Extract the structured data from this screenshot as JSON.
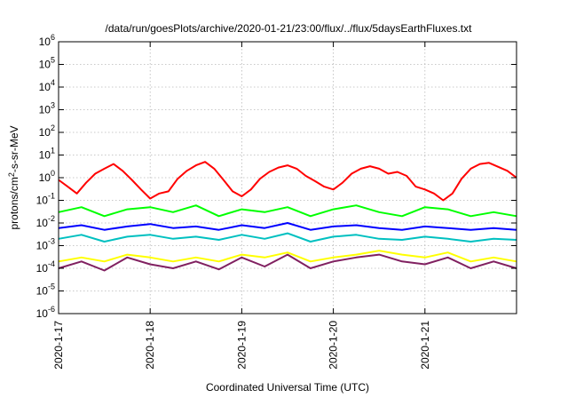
{
  "chart_data": {
    "type": "line",
    "title": "/data/run/goesPlots/archive/2020-01-21/23:00/flux/../flux/5daysEarthFluxes.txt",
    "xlabel": "Coordinated Universal Time (UTC)",
    "ylabel": "protons/cm2-s-sr-MeV",
    "ylabel_parts": {
      "before": "protons/cm",
      "sup": "2",
      "after": "-s-sr-MeV"
    },
    "x_ticks": [
      "2020-1-17",
      "2020-1-18",
      "2020-1-19",
      "2020-1-20",
      "2020-1-21"
    ],
    "xlim_days": [
      0,
      5
    ],
    "y_scale": "log",
    "y_tick_exponents": [
      -6,
      -5,
      -4,
      -3,
      -2,
      -1,
      0,
      1,
      2,
      3,
      4,
      5,
      6
    ],
    "ylim": [
      1e-06,
      1000000.0
    ],
    "grid": true,
    "series": [
      {
        "color": "#ff0000",
        "x": [
          0,
          0.1,
          0.2,
          0.3,
          0.4,
          0.5,
          0.6,
          0.7,
          0.8,
          0.9,
          1.0,
          1.1,
          1.2,
          1.3,
          1.4,
          1.5,
          1.6,
          1.7,
          1.8,
          1.9,
          2.0,
          2.1,
          2.2,
          2.3,
          2.4,
          2.5,
          2.6,
          2.7,
          2.8,
          2.9,
          3.0,
          3.1,
          3.2,
          3.3,
          3.4,
          3.5,
          3.6,
          3.7,
          3.8,
          3.9,
          4.0,
          4.1,
          4.2,
          4.3,
          4.4,
          4.5,
          4.6,
          4.7,
          4.8,
          4.9,
          5.0
        ],
        "y": [
          0.8,
          0.4,
          0.2,
          0.6,
          1.5,
          2.5,
          4.0,
          2.0,
          0.8,
          0.3,
          0.12,
          0.2,
          0.25,
          0.9,
          2.0,
          3.5,
          5.0,
          2.5,
          0.8,
          0.25,
          0.15,
          0.3,
          0.9,
          1.8,
          2.8,
          3.5,
          2.5,
          1.2,
          0.7,
          0.4,
          0.3,
          0.6,
          1.5,
          2.5,
          3.2,
          2.5,
          1.5,
          1.8,
          1.2,
          0.4,
          0.3,
          0.2,
          0.1,
          0.2,
          0.9,
          2.5,
          4.0,
          4.5,
          3.0,
          2.0,
          1.0
        ]
      },
      {
        "color": "#00ff00",
        "x": [
          0,
          0.25,
          0.5,
          0.75,
          1.0,
          1.25,
          1.5,
          1.75,
          2.0,
          2.25,
          2.5,
          2.75,
          3.0,
          3.25,
          3.5,
          3.75,
          4.0,
          4.25,
          4.5,
          4.75,
          5.0
        ],
        "y": [
          0.03,
          0.05,
          0.02,
          0.04,
          0.05,
          0.03,
          0.06,
          0.02,
          0.04,
          0.03,
          0.05,
          0.02,
          0.04,
          0.06,
          0.03,
          0.02,
          0.05,
          0.04,
          0.02,
          0.03,
          0.02
        ]
      },
      {
        "color": "#0000ff",
        "x": [
          0,
          0.25,
          0.5,
          0.75,
          1.0,
          1.25,
          1.5,
          1.75,
          2.0,
          2.25,
          2.5,
          2.75,
          3.0,
          3.25,
          3.5,
          3.75,
          4.0,
          4.25,
          4.5,
          4.75,
          5.0
        ],
        "y": [
          0.006,
          0.008,
          0.005,
          0.007,
          0.009,
          0.006,
          0.007,
          0.005,
          0.008,
          0.006,
          0.01,
          0.005,
          0.007,
          0.008,
          0.006,
          0.005,
          0.007,
          0.006,
          0.005,
          0.006,
          0.005
        ]
      },
      {
        "color": "#00c0c0",
        "x": [
          0,
          0.25,
          0.5,
          0.75,
          1.0,
          1.25,
          1.5,
          1.75,
          2.0,
          2.25,
          2.5,
          2.75,
          3.0,
          3.25,
          3.5,
          3.75,
          4.0,
          4.25,
          4.5,
          4.75,
          5.0
        ],
        "y": [
          0.002,
          0.003,
          0.0015,
          0.0025,
          0.003,
          0.002,
          0.0025,
          0.0018,
          0.003,
          0.002,
          0.0035,
          0.0015,
          0.0025,
          0.003,
          0.002,
          0.0018,
          0.0025,
          0.002,
          0.0015,
          0.002,
          0.0018
        ]
      },
      {
        "color": "#ffff00",
        "x": [
          0,
          0.25,
          0.5,
          0.75,
          1.0,
          1.25,
          1.5,
          1.75,
          2.0,
          2.25,
          2.5,
          2.75,
          3.0,
          3.25,
          3.5,
          3.75,
          4.0,
          4.25,
          4.5,
          4.75,
          5.0
        ],
        "y": [
          0.0002,
          0.0003,
          0.0002,
          0.0004,
          0.0003,
          0.0002,
          0.0003,
          0.0002,
          0.0004,
          0.0003,
          0.0005,
          0.0002,
          0.0003,
          0.0004,
          0.0006,
          0.0004,
          0.0003,
          0.0005,
          0.0002,
          0.0003,
          0.0002
        ]
      },
      {
        "color": "#802060",
        "x": [
          0,
          0.25,
          0.5,
          0.75,
          1.0,
          1.25,
          1.5,
          1.75,
          2.0,
          2.25,
          2.5,
          2.75,
          3.0,
          3.25,
          3.5,
          3.75,
          4.0,
          4.25,
          4.5,
          4.75,
          5.0
        ],
        "y": [
          0.0001,
          0.0002,
          8e-05,
          0.0003,
          0.00015,
          0.0001,
          0.0002,
          9e-05,
          0.0003,
          0.00012,
          0.0004,
          0.0001,
          0.0002,
          0.0003,
          0.0004,
          0.0002,
          0.00015,
          0.0003,
          0.0001,
          0.0002,
          0.0001
        ]
      }
    ]
  }
}
